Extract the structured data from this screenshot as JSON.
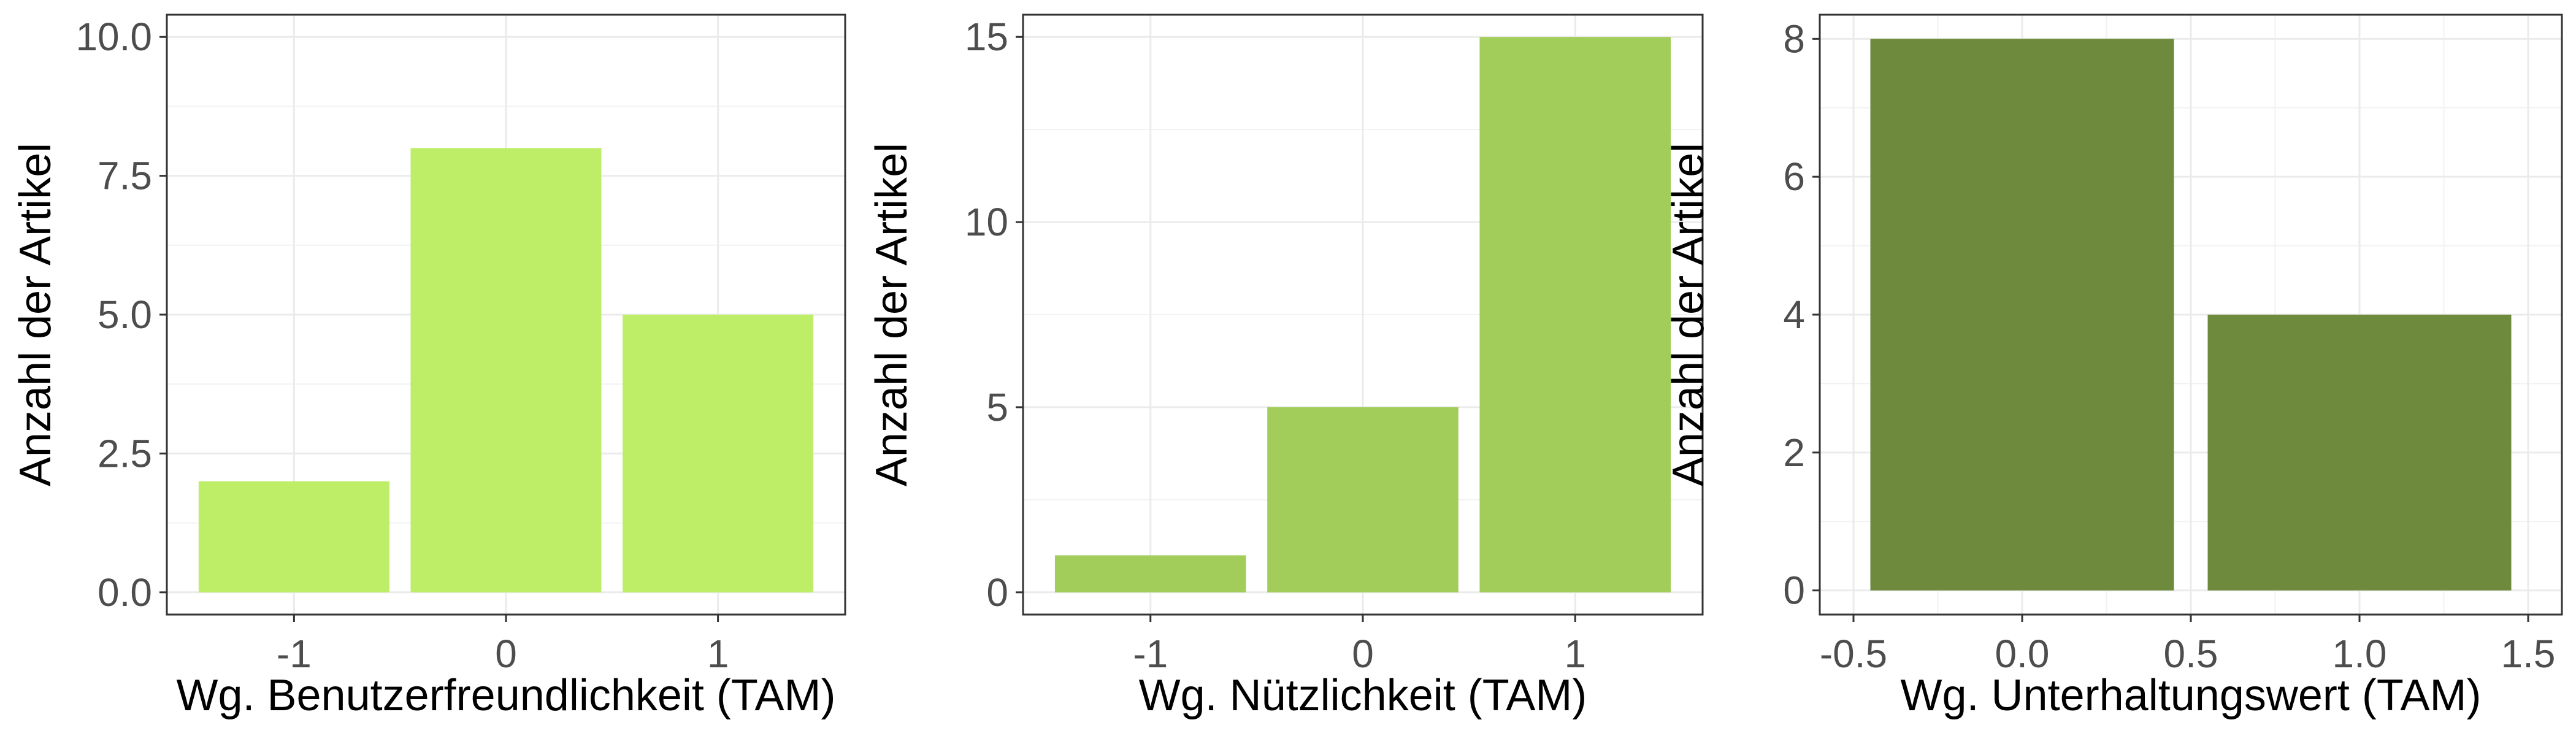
{
  "chart_data": [
    {
      "type": "bar",
      "x_scale": "categorical",
      "categories": [
        "-1",
        "0",
        "1"
      ],
      "values": [
        2,
        8,
        5
      ],
      "xlabel": "Wg. Benutzerfreundlichkeit (TAM)",
      "ylabel": "Anzahl der Artikel",
      "ylim": [
        -0.4,
        10.4
      ],
      "yticks": [
        "0.0",
        "2.5",
        "5.0",
        "7.5",
        "10.0"
      ],
      "ytick_values": [
        0,
        2.5,
        5,
        7.5,
        10
      ],
      "grid": true,
      "color": "#BEEE67"
    },
    {
      "type": "bar",
      "x_scale": "categorical",
      "categories": [
        "-1",
        "0",
        "1"
      ],
      "values": [
        1,
        5,
        15
      ],
      "xlabel": "Wg. Nützlichkeit (TAM)",
      "ylabel": "Anzahl der Artikel",
      "ylim": [
        -0.6,
        15.6
      ],
      "yticks": [
        "0",
        "5",
        "10",
        "15"
      ],
      "ytick_values": [
        0,
        5,
        10,
        15
      ],
      "grid": true,
      "color": "#A2CD5A"
    },
    {
      "type": "bar",
      "x_scale": "continuous",
      "x": [
        0,
        1
      ],
      "values": [
        8,
        4
      ],
      "bar_width": 0.9,
      "xlabel": "Wg. Unterhaltungswert (TAM)",
      "ylabel": "Anzahl der Artikel",
      "xlim": [
        -0.5,
        1.5
      ],
      "ylim": [
        -0.35,
        8.35
      ],
      "xticks": [
        "-0.5",
        "0.0",
        "0.5",
        "1.0",
        "1.5"
      ],
      "xtick_values": [
        -0.5,
        0,
        0.5,
        1,
        1.5
      ],
      "yticks": [
        "0",
        "2",
        "4",
        "6",
        "8"
      ],
      "ytick_values": [
        0,
        2,
        4,
        6,
        8
      ],
      "grid": true,
      "color": "#6E8B3D"
    }
  ]
}
